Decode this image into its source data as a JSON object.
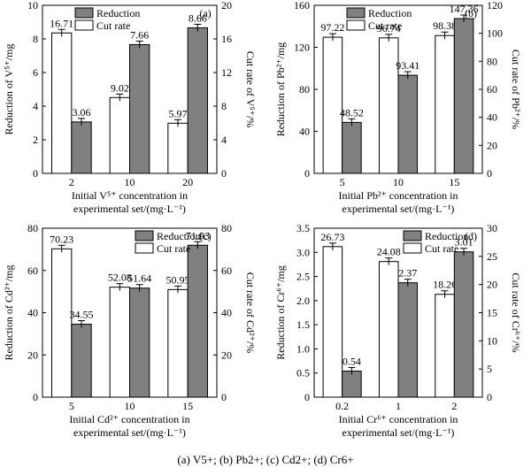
{
  "caption": "(a) V5+; (b) Pb2+; (c) Cd2+; (d) Cr6+",
  "chart_data": [
    {
      "panel": "(a)",
      "type": "bar",
      "categories": [
        "2",
        "10",
        "20"
      ],
      "series": [
        {
          "name": "Reduction",
          "axis": "left",
          "color": "#808080",
          "values": [
            3.06,
            7.66,
            8.66
          ],
          "labels": [
            "3.06",
            "7.66",
            "8.66"
          ]
        },
        {
          "name": "Cut rate",
          "axis": "right",
          "color": "#ffffff",
          "values": [
            16.71,
            9.02,
            5.97
          ],
          "labels": [
            "16.71",
            "9.02",
            "5.97"
          ]
        }
      ],
      "ylabel_left": "Reduction of V⁵⁺/mg",
      "ylabel_right": "Cut rate of V⁵⁺/%",
      "xlabel_line1": "Initial V⁵⁺ concentration in",
      "xlabel_line2": "experimental set/(mg·L⁻¹)",
      "ylim_left": [
        0,
        10
      ],
      "yticks_left": [
        "0",
        "2",
        "4",
        "6",
        "8",
        "10"
      ],
      "ylim_right": [
        0,
        20
      ],
      "yticks_right": [
        "0",
        "4",
        "8",
        "12",
        "16",
        "20"
      ],
      "legend": "top-center"
    },
    {
      "panel": "(b)",
      "type": "bar",
      "categories": [
        "5",
        "10",
        "15"
      ],
      "series": [
        {
          "name": "Reduction",
          "axis": "left",
          "color": "#808080",
          "values": [
            48.52,
            93.41,
            147.36
          ],
          "labels": [
            "48.52",
            "93.41",
            "147.36"
          ]
        },
        {
          "name": "Cut rate",
          "axis": "right",
          "color": "#ffffff",
          "values": [
            97.22,
            96.74,
            98.38
          ],
          "labels": [
            "97.22",
            "96.74",
            "98.38"
          ]
        }
      ],
      "ylabel_left": "Reduction of Pb²⁺/mg",
      "ylabel_right": "Cut rate of Pb²⁺/%",
      "xlabel_line1": "Initial Pb²⁺ concentration in",
      "xlabel_line2": "experimental set/(mg·L⁻¹)",
      "ylim_left": [
        0,
        160
      ],
      "yticks_left": [
        "0",
        "40",
        "80",
        "120",
        "160"
      ],
      "ylim_right": [
        0,
        120
      ],
      "yticks_right": [
        "0",
        "20",
        "40",
        "60",
        "80",
        "100",
        "120"
      ],
      "legend": "top-center"
    },
    {
      "panel": "(c)",
      "type": "bar",
      "categories": [
        "5",
        "10",
        "15"
      ],
      "series": [
        {
          "name": "Reduction",
          "axis": "left",
          "color": "#808080",
          "values": [
            34.55,
            51.64,
            71.93
          ],
          "labels": [
            "34.55",
            "51.64",
            "71.93"
          ]
        },
        {
          "name": "Cut rate",
          "axis": "right",
          "color": "#ffffff",
          "values": [
            70.23,
            52.08,
            50.95
          ],
          "labels": [
            "70.23",
            "52.08",
            "50.95"
          ]
        }
      ],
      "ylabel_left": "Reduction of Cd²⁺/mg",
      "ylabel_right": "Cut rate of Cd²⁺/%",
      "xlabel_line1": "Initial Cd²⁺ concentration in",
      "xlabel_line2": "experimental set/(mg·L⁻¹)",
      "ylim_left": [
        0,
        80
      ],
      "yticks_left": [
        "0",
        "20",
        "40",
        "60",
        "80"
      ],
      "ylim_right": [
        0,
        80
      ],
      "yticks_right": [
        "0",
        "20",
        "40",
        "60",
        "80"
      ],
      "legend": "top-right"
    },
    {
      "panel": "(d)",
      "type": "bar",
      "categories": [
        "0.2",
        "1",
        "2"
      ],
      "series": [
        {
          "name": "Reduction",
          "axis": "left",
          "color": "#808080",
          "values": [
            0.54,
            2.37,
            3.01
          ],
          "labels": [
            "0.54",
            "2.37",
            "3.01"
          ]
        },
        {
          "name": "Cut rate",
          "axis": "right",
          "color": "#ffffff",
          "values": [
            26.73,
            24.08,
            18.26
          ],
          "labels": [
            "26.73",
            "24.08",
            "18.26"
          ]
        }
      ],
      "ylabel_left": "Reduction of Cr⁶⁺/mg",
      "ylabel_right": "Cut rate of Cr⁶⁺/%",
      "xlabel_line1": "Initial Cr⁶⁺ concentration in",
      "xlabel_line2": "experimental set/(mg·L⁻¹)",
      "ylim_left": [
        0,
        3.5
      ],
      "yticks_left": [
        "0",
        "0.5",
        "1.0",
        "1.5",
        "2.0",
        "2.5",
        "3.0",
        "3.5"
      ],
      "ylim_right": [
        0,
        30
      ],
      "yticks_right": [
        "0",
        "5",
        "10",
        "15",
        "20",
        "25",
        "30"
      ],
      "legend": "top-right"
    }
  ]
}
